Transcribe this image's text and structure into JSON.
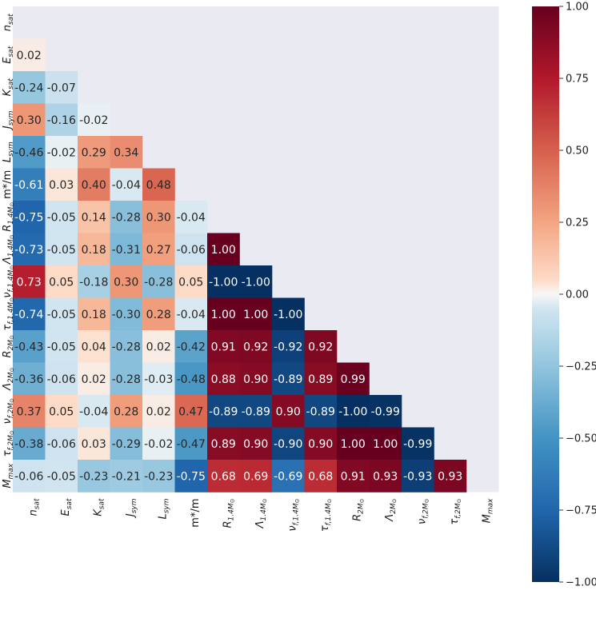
{
  "chart_data": {
    "type": "heatmap",
    "variables": [
      "n_sat",
      "E_sat",
      "K_sat",
      "J_sym",
      "L_sym",
      "m*/m",
      "R_1.4M",
      "Λ_1.4M",
      "ν_f,1.4M",
      "τ_f,1.4M",
      "R_2M",
      "Λ_2M",
      "ν_f,2M",
      "τ_f,2M",
      "M_max"
    ],
    "labels": [
      {
        "base": "n",
        "sub": "sat"
      },
      {
        "base": "E",
        "sub": "sat"
      },
      {
        "base": "K",
        "sub": "sat"
      },
      {
        "base": "J",
        "sub": "sym"
      },
      {
        "base": "L",
        "sub": "sym"
      },
      {
        "base": "m*/m",
        "sub": ""
      },
      {
        "base": "R",
        "sub": "1.4M",
        "subsub": "⊙"
      },
      {
        "base": "Λ",
        "sub": "1.4M",
        "subsub": "⊙"
      },
      {
        "base": "ν",
        "sub": "f,1.4M",
        "subsub": "⊙"
      },
      {
        "base": "τ",
        "sub": "f,1.4M",
        "subsub": "⊙"
      },
      {
        "base": "R",
        "sub": "2M",
        "subsub": "⊙"
      },
      {
        "base": "Λ",
        "sub": "2M",
        "subsub": "⊙"
      },
      {
        "base": "ν",
        "sub": "f,2M",
        "subsub": "⊙"
      },
      {
        "base": "τ",
        "sub": "f,2M",
        "subsub": "⊙"
      },
      {
        "base": "M",
        "sub": "max"
      }
    ],
    "matrix_lower": [
      [],
      [
        0.02
      ],
      [
        -0.24,
        -0.07
      ],
      [
        0.3,
        -0.16,
        -0.02
      ],
      [
        -0.46,
        -0.02,
        0.29,
        0.34
      ],
      [
        -0.61,
        0.03,
        0.4,
        -0.04,
        0.48
      ],
      [
        -0.75,
        -0.05,
        0.14,
        -0.28,
        0.3,
        -0.04
      ],
      [
        -0.73,
        -0.05,
        0.18,
        -0.31,
        0.27,
        -0.06,
        1.0
      ],
      [
        0.73,
        0.05,
        -0.18,
        0.3,
        -0.28,
        0.05,
        -1.0,
        -1.0
      ],
      [
        -0.74,
        -0.05,
        0.18,
        -0.3,
        0.28,
        -0.04,
        1.0,
        1.0,
        -1.0
      ],
      [
        -0.43,
        -0.05,
        0.04,
        -0.28,
        0.02,
        -0.42,
        0.91,
        0.92,
        -0.92,
        0.92
      ],
      [
        -0.36,
        -0.06,
        0.02,
        -0.28,
        -0.03,
        -0.48,
        0.88,
        0.9,
        -0.89,
        0.89,
        0.99
      ],
      [
        0.37,
        0.05,
        -0.04,
        0.28,
        0.02,
        0.47,
        -0.89,
        -0.89,
        0.9,
        -0.89,
        -1.0,
        -0.99
      ],
      [
        -0.38,
        -0.06,
        0.03,
        -0.29,
        -0.02,
        -0.47,
        0.89,
        0.9,
        -0.9,
        0.9,
        1.0,
        1.0,
        -0.99
      ],
      [
        -0.06,
        -0.05,
        -0.23,
        -0.21,
        -0.23,
        -0.75,
        0.68,
        0.69,
        -0.69,
        0.68,
        0.91,
        0.93,
        -0.93,
        0.93
      ]
    ],
    "value_format": "2-decimals",
    "colormap": "RdBu_r",
    "vmin": -1.0,
    "vmax": 1.0,
    "masked_background": "#eaeaf2",
    "colorbar": {
      "ticks": [
        1.0,
        0.75,
        0.5,
        0.25,
        0.0,
        -0.25,
        -0.5,
        -0.75,
        -1.0
      ],
      "tick_labels": [
        "1.00",
        "0.75",
        "0.50",
        "0.25",
        "0.00",
        "−0.25",
        "−0.50",
        "−0.75",
        "−1.00"
      ]
    }
  }
}
